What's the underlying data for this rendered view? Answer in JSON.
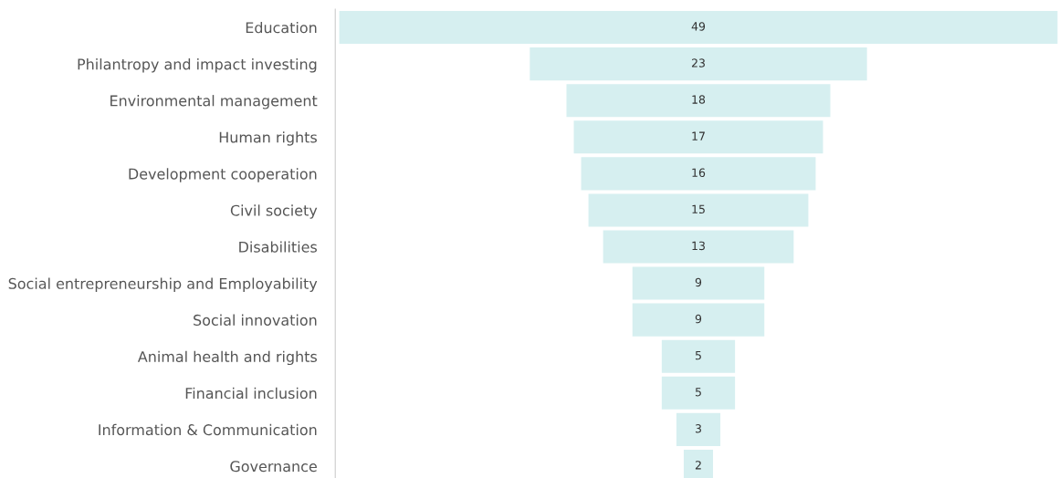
{
  "chart_data": {
    "type": "other",
    "categories": [
      "Education",
      "Philantropy and impact investing",
      "Environmental management",
      "Human rights",
      "Development cooperation",
      "Civil society",
      "Disabilities",
      "Social entrepreneurship and Employability",
      "Social innovation",
      "Animal health and rights",
      "Financial inclusion",
      "Information & Communication",
      "Governance"
    ],
    "values": [
      49,
      23,
      18,
      17,
      16,
      15,
      13,
      9,
      9,
      5,
      5,
      3,
      2
    ],
    "color": "#d6eff0",
    "data_labels": true
  }
}
